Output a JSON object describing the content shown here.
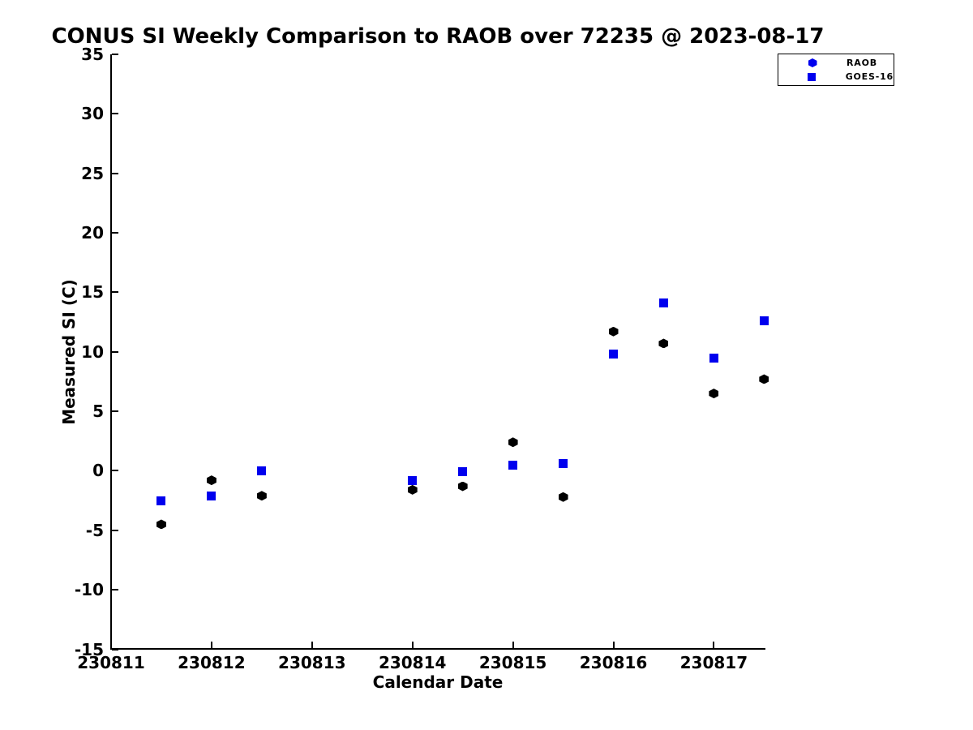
{
  "chart_data": {
    "type": "scatter",
    "title": "CONUS SI Weekly Comparison to RAOB over 72235 @ 2023-08-17",
    "xlabel": "Calendar Date",
    "ylabel": "Measured SI (C)",
    "x_tick_labels": [
      "230811",
      "230812",
      "230813",
      "230814",
      "230815",
      "230816",
      "230817"
    ],
    "x_tick_days": [
      0,
      1,
      2,
      3,
      4,
      5,
      6
    ],
    "y_ticks": [
      35,
      30,
      25,
      20,
      15,
      10,
      5,
      0,
      -5,
      -10,
      -15
    ],
    "ylim": [
      -15,
      35
    ],
    "xlim_days": [
      0,
      6.5
    ],
    "grid": false,
    "legend_position": "upper-right",
    "series": [
      {
        "name": "RAOB",
        "marker": "hexagon",
        "color": "#000000",
        "x_days": [
          0.5,
          1,
          1.5,
          3,
          3.5,
          4,
          4.5,
          5,
          5.5,
          6,
          6.5
        ],
        "values": [
          -4.5,
          -0.8,
          -2.1,
          -1.6,
          -1.3,
          2.4,
          -2.2,
          11.7,
          10.7,
          6.5,
          7.7
        ]
      },
      {
        "name": "GOES-16",
        "marker": "square",
        "color": "#0000ee",
        "x_days": [
          0.5,
          1,
          1.5,
          3,
          3.5,
          4,
          4.5,
          5,
          5.5,
          6,
          6.5
        ],
        "values": [
          -2.5,
          -2.1,
          0.0,
          -0.8,
          -0.1,
          0.5,
          0.6,
          9.8,
          14.1,
          9.5,
          12.6
        ]
      }
    ],
    "legend_marker_color": "#0000ee"
  }
}
